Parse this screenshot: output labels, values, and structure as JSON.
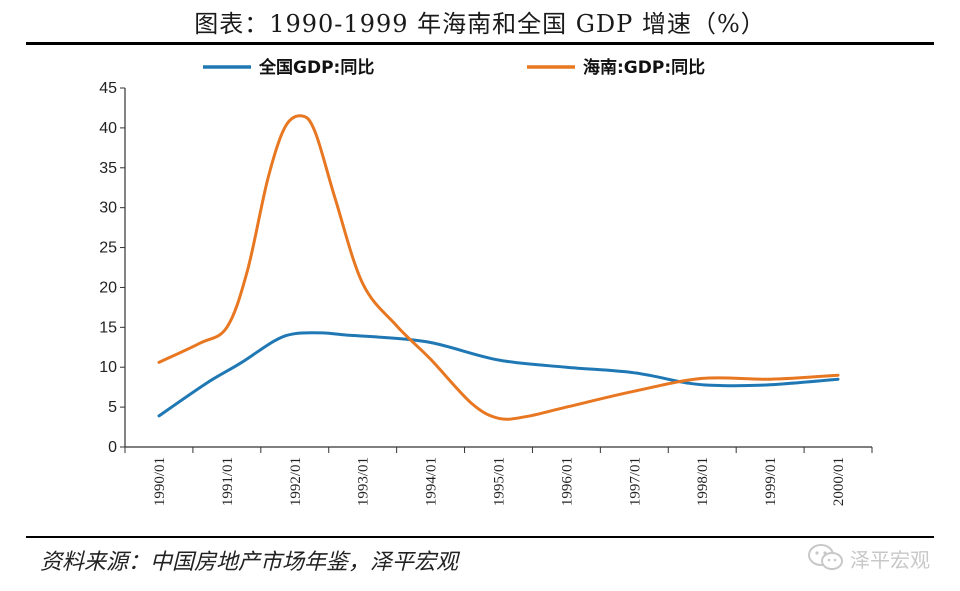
{
  "page": {
    "title": "图表：1990-1999 年海南和全国 GDP 增速（%）",
    "source": "资料来源：中国房地产市场年鉴，泽平宏观",
    "watermark": "泽平宏观",
    "watermark_icon": "wechat-icon"
  },
  "chart_data": {
    "type": "line",
    "title": "图表：1990-1999 年海南和全国 GDP 增速（%）",
    "xlabel": "",
    "ylabel": "",
    "ylim": [
      0,
      45
    ],
    "yticks": [
      "0",
      "5",
      "10",
      "15",
      "20",
      "25",
      "30",
      "35",
      "40",
      "45"
    ],
    "categories": [
      "1990/01",
      "1991/01",
      "1992/01",
      "1993/01",
      "1994/01",
      "1995/01",
      "1996/01",
      "1997/01",
      "1998/01",
      "1999/01",
      "2000/01"
    ],
    "legend_position": "top",
    "series": [
      {
        "name": "全国GDP:同比",
        "color": "#1f78b4",
        "x": [
          0,
          0.7,
          1.2,
          1.7,
          2.0,
          2.4,
          2.8,
          3.2,
          4.0,
          5.0,
          6.0,
          7.0,
          7.8,
          8.3,
          9.0,
          10.0
        ],
        "values": [
          3.9,
          8.0,
          10.5,
          13.3,
          14.2,
          14.3,
          14.0,
          13.8,
          13.1,
          10.9,
          10.0,
          9.3,
          8.0,
          7.7,
          7.8,
          8.5
        ]
      },
      {
        "name": "海南:GDP:同比",
        "color": "#e87722",
        "x": [
          0,
          0.6,
          1.0,
          1.3,
          1.6,
          1.85,
          2.1,
          2.3,
          2.6,
          3.0,
          3.5,
          4.0,
          4.6,
          5.0,
          5.4,
          6.0,
          7.0,
          8.0,
          9.0,
          10.0
        ],
        "values": [
          10.6,
          13.0,
          15.0,
          22.0,
          33.5,
          40.0,
          41.5,
          39.5,
          31.0,
          20.5,
          15.2,
          11.0,
          5.5,
          3.6,
          3.8,
          5.0,
          7.0,
          8.6,
          8.5,
          9.0
        ]
      }
    ]
  }
}
